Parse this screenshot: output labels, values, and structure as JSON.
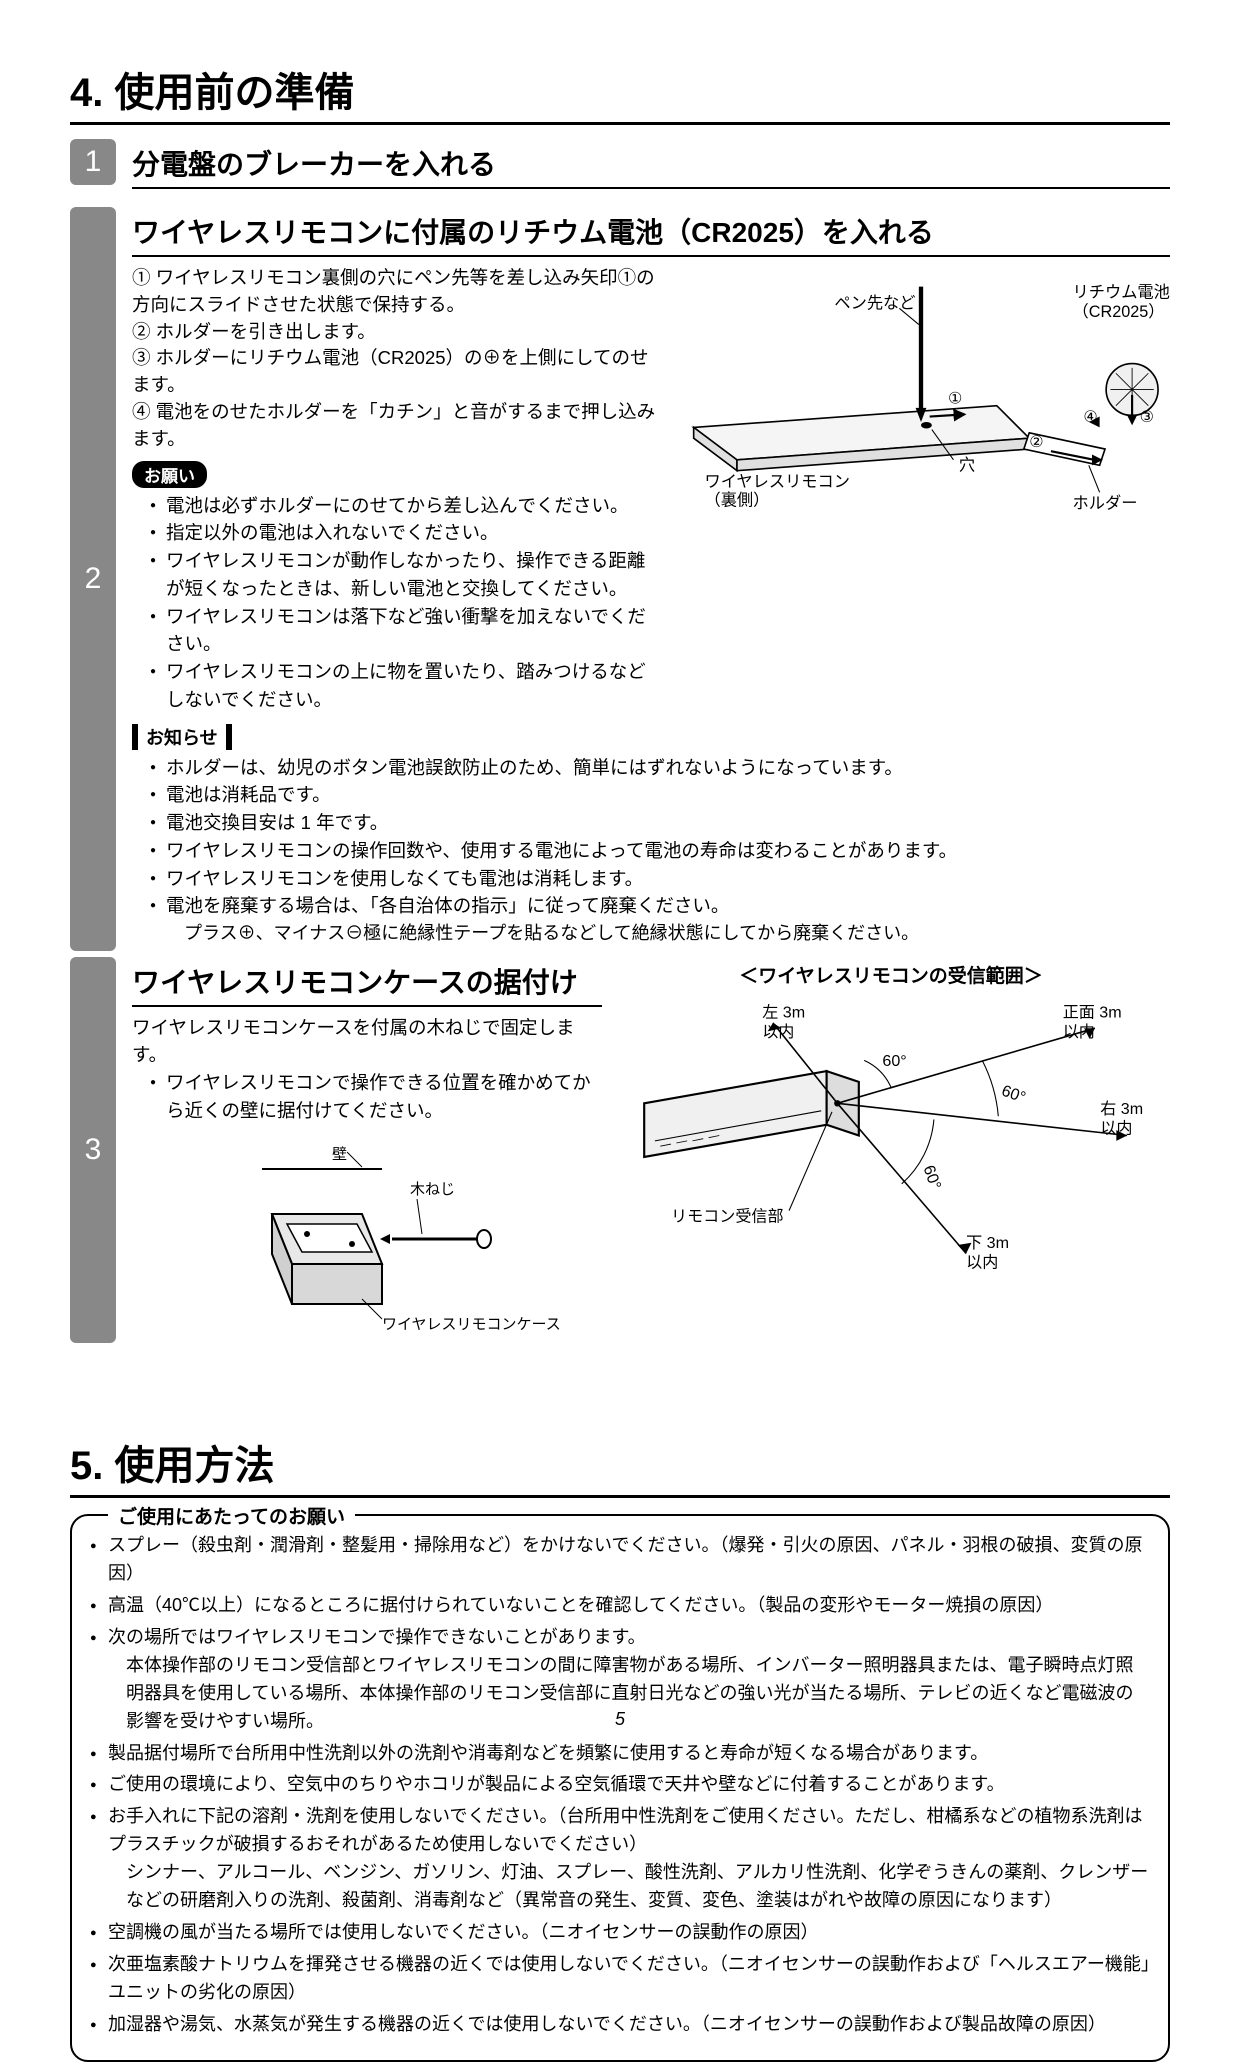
{
  "section4": {
    "title": "4. 使用前の準備",
    "step1": {
      "num": "1",
      "head": "分電盤のブレーカーを入れる"
    },
    "step2": {
      "num": "2",
      "head": "ワイヤレスリモコンに付属のリチウム電池（CR2025）を入れる",
      "lines": [
        "① ワイヤレスリモコン裏側の穴にペン先等を差し込み矢印①の方向にスライドさせた状態で保持する。",
        "② ホルダーを引き出します。",
        "③ ホルダーにリチウム電池（CR2025）の⊕を上側にしてのせます。",
        "④ 電池をのせたホルダーを「カチン」と音がするまで押し込みます。"
      ],
      "onegaiLabel": "お願い",
      "onegai": [
        "電池は必ずホルダーにのせてから差し込んでください。",
        "指定以外の電池は入れないでください。",
        "ワイヤレスリモコンが動作しなかったり、操作できる距離が短くなったときは、新しい電池と交換してください。",
        "ワイヤレスリモコンは落下など強い衝撃を加えないでください。",
        "ワイヤレスリモコンの上に物を置いたり、踏みつけるなどしないでください。"
      ],
      "oshiraseLabel": "お知らせ",
      "oshirase": [
        "ホルダーは、幼児のボタン電池誤飲防止のため、簡単にはずれないようになっています。",
        "電池は消耗品です。",
        "電池交換目安は 1 年です。",
        "ワイヤレスリモコンの操作回数や、使用する電池によって電池の寿命は変わることがあります。",
        "ワイヤレスリモコンを使用しなくても電池は消耗します。",
        "電池を廃棄する場合は、「各自治体の指示」に従って廃棄ください。"
      ],
      "oshiraseSub": "プラス⊕、マイナス⊖極に絶縁性テープを貼るなどして絶縁状態にしてから廃棄ください。",
      "diag": {
        "pen": "ペン先など",
        "battery1": "リチウム電池",
        "battery2": "（CR2025）",
        "remote1": "ワイヤレスリモコン",
        "remote2": "（裏側）",
        "hole": "穴",
        "holder": "ホルダー",
        "m1": "①",
        "m2": "②",
        "m3": "③",
        "m4": "④"
      }
    },
    "step3": {
      "num": "3",
      "head": "ワイヤレスリモコンケースの据付け",
      "intro": "ワイヤレスリモコンケースを付属の木ねじで固定します。",
      "bullets": [
        "ワイヤレスリモコンで操作できる位置を確かめてから近くの壁に据付けてください。"
      ],
      "diag": {
        "wall": "壁",
        "screw": "木ねじ",
        "case": "ワイヤレスリモコンケース"
      },
      "rangeTitle": "＜ワイヤレスリモコンの受信範囲＞",
      "range": {
        "left": "左 3m",
        "leftSub": "以内",
        "front": "正面 3m",
        "frontSub": "以内",
        "right": "右 3m",
        "rightSub": "以内",
        "down": "下 3m",
        "downSub": "以内",
        "angle": "60°",
        "receiver": "リモコン受信部"
      }
    }
  },
  "section5": {
    "title": "5. 使用方法",
    "boxTitle": "ご使用にあたってのお願い",
    "items": [
      {
        "main": "スプレー（殺虫剤・潤滑剤・整髪用・掃除用など）をかけないでください。（爆発・引火の原因、パネル・羽根の破損、変質の原因）"
      },
      {
        "main": "高温（40℃以上）になるところに据付けられていないことを確認してください。（製品の変形やモーター焼損の原因）"
      },
      {
        "main": "次の場所ではワイヤレスリモコンで操作できないことがあります。",
        "sub": "本体操作部のリモコン受信部とワイヤレスリモコンの間に障害物がある場所、インバーター照明器具または、電子瞬時点灯照明器具を使用している場所、本体操作部のリモコン受信部に直射日光などの強い光が当たる場所、テレビの近くなど電磁波の影響を受けやすい場所。"
      },
      {
        "main": "製品据付場所で台所用中性洗剤以外の洗剤や消毒剤などを頻繁に使用すると寿命が短くなる場合があります。"
      },
      {
        "main": "ご使用の環境により、空気中のちりやホコリが製品による空気循環で天井や壁などに付着することがあります。"
      },
      {
        "main": "お手入れに下記の溶剤・洗剤を使用しないでください。（台所用中性洗剤をご使用ください。ただし、柑橘系などの植物系洗剤はプラスチックが破損するおそれがあるため使用しないでください）",
        "sub": "シンナー、アルコール、ベンジン、ガソリン、灯油、スプレー、酸性洗剤、アルカリ性洗剤、化学ぞうきんの薬剤、クレンザーなどの研磨剤入りの洗剤、殺菌剤、消毒剤など（異常音の発生、変質、変色、塗装はがれや故障の原因になります）"
      },
      {
        "main": "空調機の風が当たる場所では使用しないでください。（ニオイセンサーの誤動作の原因）"
      },
      {
        "main": "次亜塩素酸ナトリウムを揮発させる機器の近くでは使用しないでください。（ニオイセンサーの誤動作および「ヘルスエアー機能」ユニットの劣化の原因）"
      },
      {
        "main": "加湿器や湯気、水蒸気が発生する機器の近くでは使用しないでください。（ニオイセンサーの誤動作および製品故障の原因）"
      }
    ]
  },
  "pageNumber": "5"
}
